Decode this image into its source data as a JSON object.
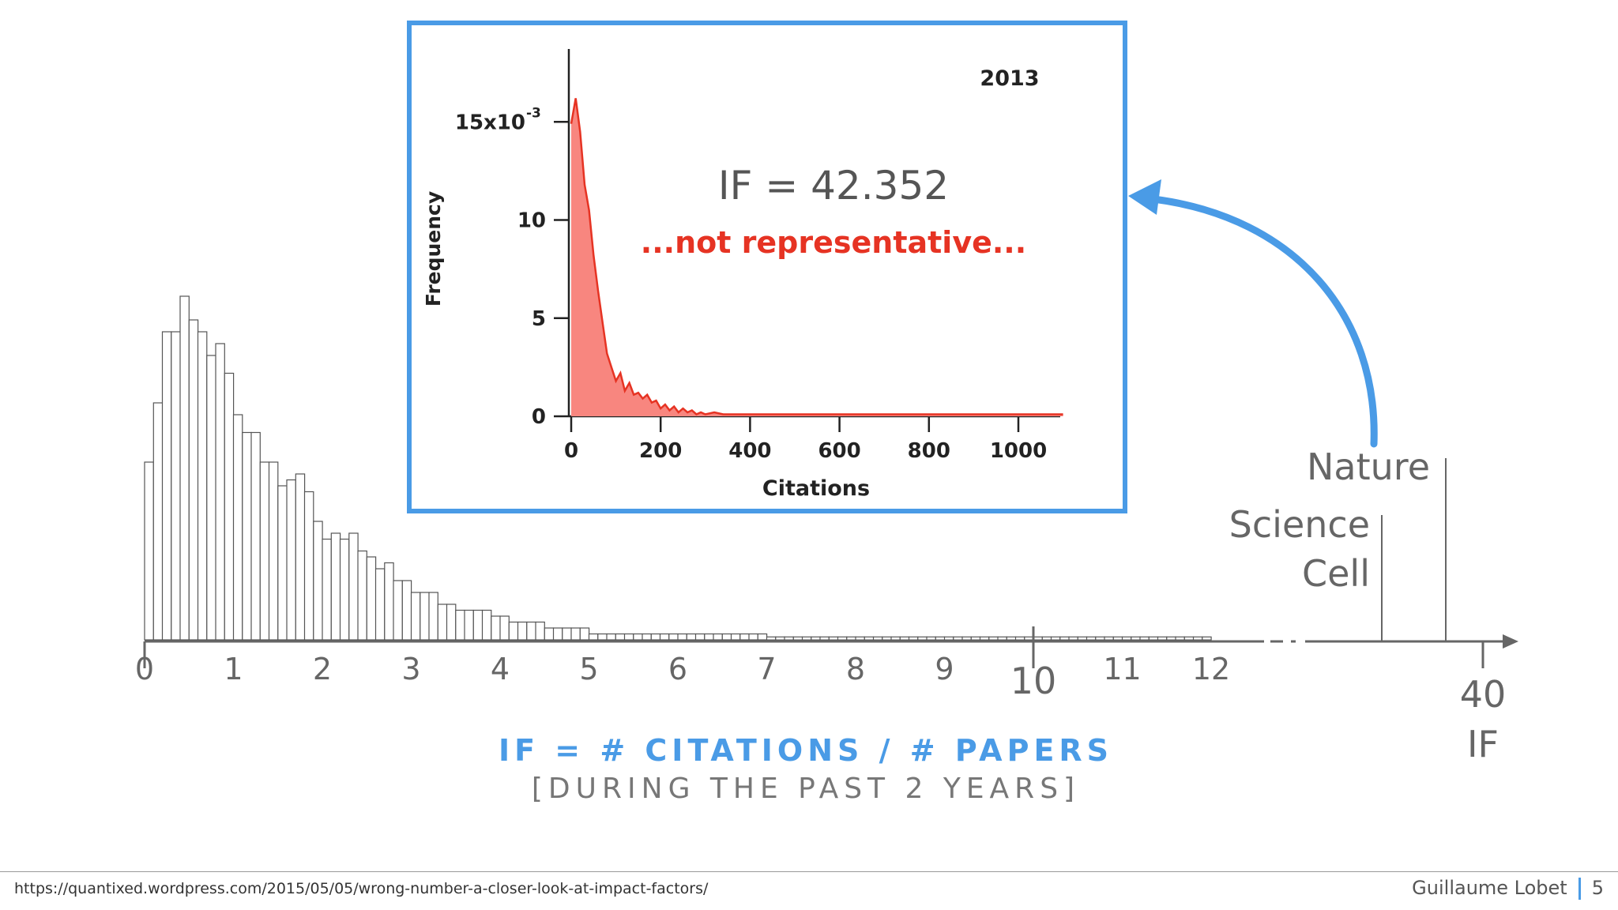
{
  "inset": {
    "year": "2013",
    "if_text": "IF = 42.352",
    "note": "...not representative...",
    "ylabel": "Frequency",
    "xlabel": "Citations",
    "ytick_labels": [
      "0",
      "5",
      "10",
      "15x10"
    ],
    "ytick_exp": "-3",
    "xtick_labels": [
      "0",
      "200",
      "400",
      "600",
      "800",
      "1000"
    ]
  },
  "chart_data": [
    {
      "type": "bar",
      "description_role": "impact factor distribution histogram",
      "x_start": 0.05,
      "bin_width": 0.1,
      "values": [
        30,
        40,
        52,
        52,
        58,
        54,
        52,
        48,
        50,
        45,
        38,
        35,
        35,
        30,
        30,
        26,
        27,
        28,
        25,
        20,
        17,
        18,
        17,
        18,
        15,
        14,
        12,
        13,
        10,
        10,
        8,
        8,
        8,
        6,
        6,
        5,
        5,
        5,
        5,
        4,
        4,
        3,
        3,
        3,
        3,
        2,
        2,
        2,
        2,
        2,
        1,
        1,
        1,
        1,
        1,
        1,
        1,
        1,
        1,
        1,
        1,
        1,
        1,
        1,
        1,
        1,
        1,
        1,
        1,
        1,
        0.5,
        0.5,
        0.5,
        0.5,
        0.5,
        0.5,
        0.5,
        0.5,
        0.5,
        0.5,
        0.5,
        0.5,
        0.5,
        0.5,
        0.5,
        0.5,
        0.5,
        0.5,
        0.5,
        0.5,
        0.5,
        0.5,
        0.5,
        0.5,
        0.5,
        0.5,
        0.5,
        0.5,
        0.5,
        0.5,
        0.5,
        0.5,
        0.5,
        0.5,
        0.5,
        0.5,
        0.5,
        0.5,
        0.5,
        0.5,
        0.5,
        0.5,
        0.5,
        0.5,
        0.5,
        0.5,
        0.5,
        0.5,
        0.5,
        0.5
      ],
      "xlabel": "IF",
      "xtick_labels": [
        "0",
        "1",
        "2",
        "3",
        "4",
        "5",
        "6",
        "7",
        "8",
        "9",
        "10",
        "11",
        "12"
      ],
      "xlim": [
        0,
        12
      ],
      "far_tick_label": "40",
      "markers": [
        {
          "label": "Nature",
          "value": 40
        },
        {
          "label": "Science",
          "value": 32
        },
        {
          "label": "Cell",
          "value": 32
        }
      ]
    },
    {
      "type": "area",
      "description_role": "citation frequency distribution",
      "x": [
        0,
        10,
        20,
        30,
        40,
        50,
        60,
        70,
        80,
        90,
        100,
        110,
        120,
        130,
        140,
        150,
        160,
        170,
        180,
        190,
        200,
        210,
        220,
        230,
        240,
        250,
        260,
        270,
        280,
        290,
        300,
        320,
        340,
        360,
        380,
        400,
        450,
        500,
        550,
        600,
        650,
        700,
        750,
        800,
        850,
        900,
        950,
        1000,
        1050,
        1100
      ],
      "y": [
        0.0149,
        0.0162,
        0.0145,
        0.0118,
        0.0105,
        0.0082,
        0.0064,
        0.0048,
        0.0032,
        0.0025,
        0.0018,
        0.0022,
        0.0013,
        0.0017,
        0.0011,
        0.0012,
        0.0009,
        0.0011,
        0.0007,
        0.0008,
        0.0004,
        0.0006,
        0.0003,
        0.0005,
        0.0002,
        0.0004,
        0.0002,
        0.0003,
        0.0001,
        0.0002,
        0.0001,
        0.0002,
        0.0001,
        0.0001,
        0.0001,
        0.0001,
        0.0001,
        0.0001,
        0.0001,
        0.0001,
        0.0001,
        0.0001,
        0.0001,
        0.0001,
        0.0001,
        0.0001,
        0.0001,
        0.0001,
        0.0001,
        0.0001
      ],
      "xlabel": "Citations",
      "ylabel": "Frequency",
      "xlim": [
        0,
        1100
      ],
      "ylim": [
        0,
        0.018
      ],
      "title": "2013",
      "color": "#e63323",
      "fill": "#f8867f"
    }
  ],
  "formula": {
    "main": "IF = # CITATIONS / # PAPERS",
    "sub": "[DURING THE PAST 2 YEARS]"
  },
  "footer": {
    "url": "https://quantixed.wordpress.com/2015/05/05/wrong-number-a-closer-look-at-impact-factors/",
    "author": "Guillaume Lobet",
    "page": "5"
  },
  "colors": {
    "accent": "#4a9be6",
    "red": "#e63323",
    "axis": "#555555"
  }
}
